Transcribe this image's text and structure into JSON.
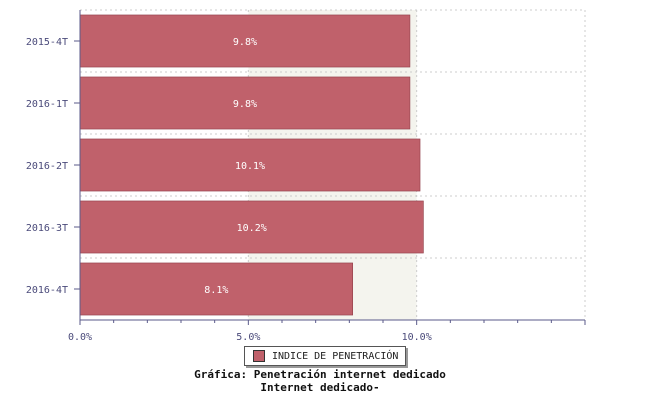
{
  "chart_data": {
    "type": "bar",
    "orientation": "horizontal",
    "categories": [
      "2015-4T",
      "2016-1T",
      "2016-2T",
      "2016-3T",
      "2016-4T"
    ],
    "values": [
      9.8,
      9.8,
      10.1,
      10.2,
      8.1
    ],
    "data_labels": [
      "9.8%",
      "9.8%",
      "10.1%",
      "10.2%",
      "8.1%"
    ],
    "x_ticks": [
      "0.0%",
      "5.0%",
      "10.0%"
    ],
    "xlim": [
      0,
      15
    ],
    "grid": true,
    "legend": {
      "placement": "bottom",
      "label": "INDICE DE PENETRACIÓN"
    },
    "title": "Gráfica: Penetración internet dedicado",
    "subtitle": "Internet dedicado-"
  },
  "colors": {
    "bar": "#c0616b",
    "bar_edge": "#8f3d47",
    "shaded_band": "#f4f4ee",
    "axis": "#5a5a8a",
    "grid": "#cccccc"
  }
}
